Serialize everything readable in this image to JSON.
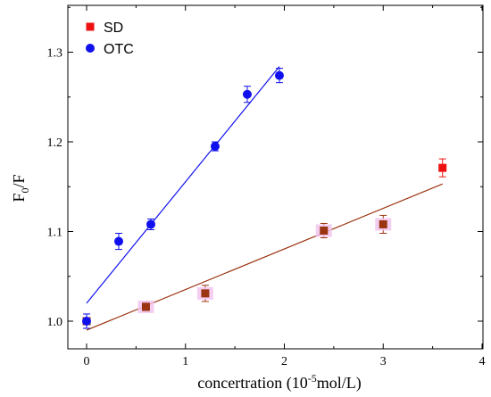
{
  "chart_data": {
    "type": "scatter",
    "xlabel_main": "concertration (10",
    "xlabel_sup": "-5",
    "xlabel_tail": "mol/L)",
    "ylabel_main": "F",
    "ylabel_sub": "0",
    "ylabel_tail": "/F",
    "xlim": [
      0,
      4
    ],
    "ylim": [
      0.97,
      1.35
    ],
    "x_ticks": [
      0,
      1,
      2,
      3,
      4
    ],
    "x_tick_labels": [
      "0",
      "1",
      "2",
      "3",
      "4"
    ],
    "y_ticks": [
      1.0,
      1.1,
      1.2,
      1.3
    ],
    "y_tick_labels": [
      "1.0",
      "1.1",
      "1.2",
      "1.3"
    ],
    "grid": false,
    "legend_position": "top-left",
    "legend": [
      {
        "label": "SD",
        "marker": "square",
        "color": "#ee1111"
      },
      {
        "label": "OTC",
        "marker": "circle",
        "color": "#1010ee"
      }
    ],
    "series": [
      {
        "name": "SD",
        "marker": "square",
        "color": "#9b3411",
        "color_last": "#ee1111",
        "point_halo": "#f2c6ee",
        "fit_color": "#9b3411",
        "x": [
          0,
          0.6,
          1.2,
          2.4,
          3.0,
          3.6
        ],
        "y": [
          1.0,
          1.016,
          1.031,
          1.101,
          1.108,
          1.171
        ],
        "yerr": [
          0.008,
          0.005,
          0.009,
          0.008,
          0.01,
          0.01
        ],
        "fit": {
          "x": [
            0,
            3.6
          ],
          "y": [
            0.99,
            1.153
          ]
        }
      },
      {
        "name": "OTC",
        "marker": "circle",
        "color": "#1010ee",
        "fit_color": "#1010ee",
        "x": [
          0,
          0.325,
          0.65,
          1.3,
          1.625,
          1.95
        ],
        "y": [
          1.0,
          1.089,
          1.108,
          1.195,
          1.253,
          1.274
        ],
        "yerr": [
          0.008,
          0.009,
          0.006,
          0.005,
          0.009,
          0.008
        ],
        "fit": {
          "x": [
            0,
            1.95
          ],
          "y": [
            1.02,
            1.284
          ]
        }
      }
    ]
  }
}
